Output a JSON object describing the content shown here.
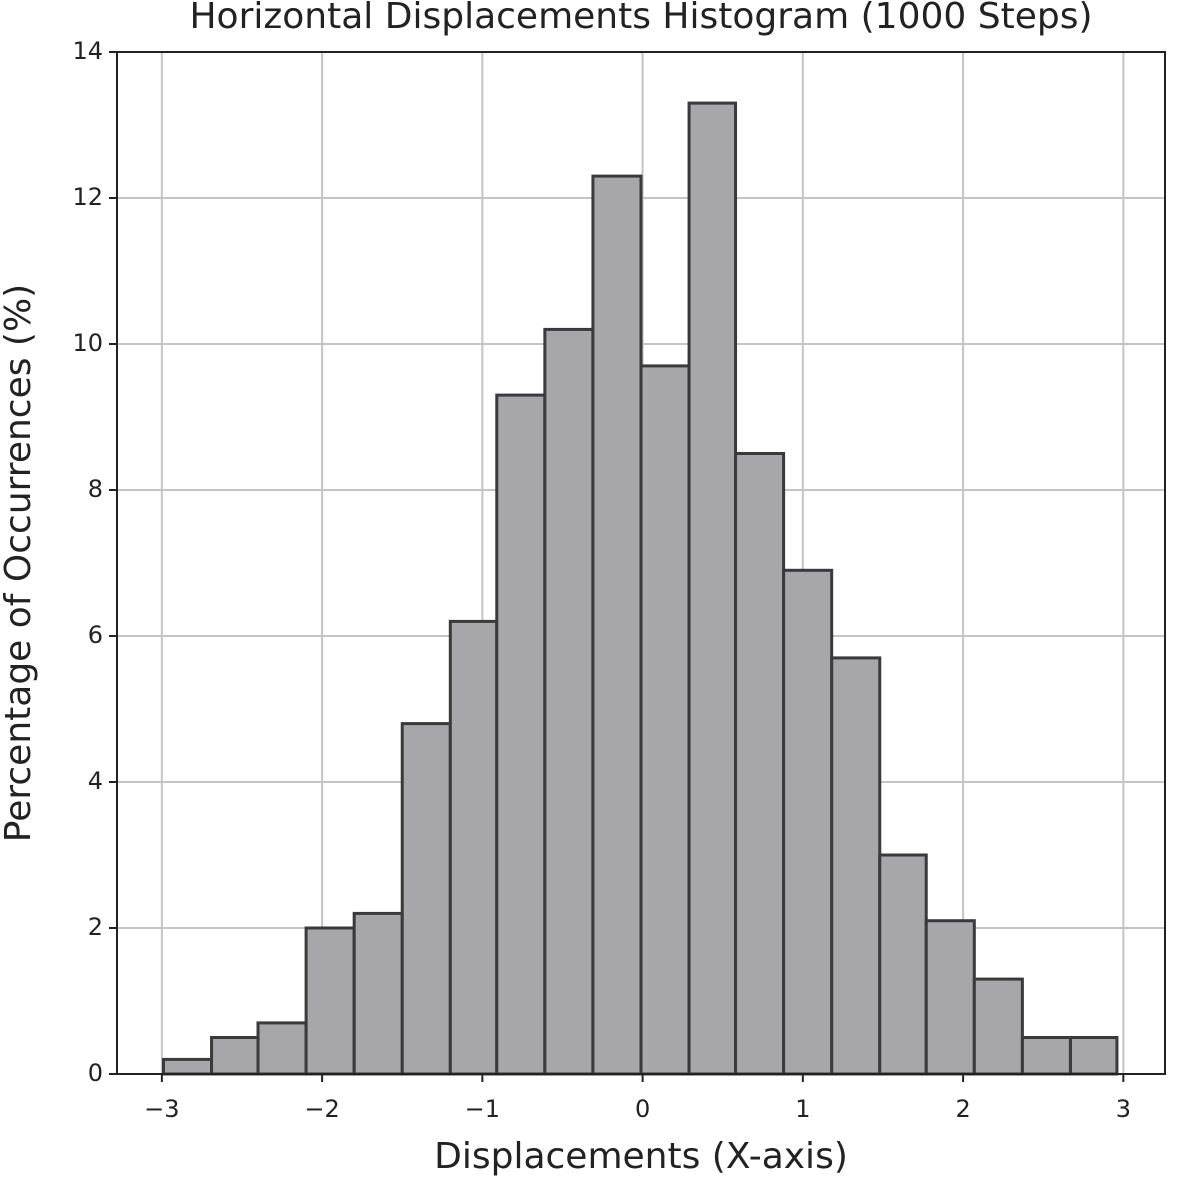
{
  "chart_data": {
    "type": "histogram",
    "title": "Horizontal Displacements Histogram (1000 Steps)",
    "xlabel": "Displacements (X-axis)",
    "ylabel": "Percentage of Occurrences (%)",
    "bins": [
      -2.99,
      -2.69,
      -2.4,
      -2.1,
      -1.8,
      -1.5,
      -1.2,
      -0.91,
      -0.61,
      -0.31,
      -0.01,
      0.29,
      0.58,
      0.88,
      1.18,
      1.48,
      1.77,
      2.07,
      2.37,
      2.67,
      2.96
    ],
    "values": [
      0.2,
      0.5,
      0.7,
      2.0,
      2.2,
      4.8,
      6.2,
      9.3,
      10.2,
      12.3,
      9.7,
      13.3,
      8.5,
      6.9,
      5.7,
      3.0,
      2.1,
      1.3,
      0.5,
      0.5
    ],
    "color": "#a6a6ab",
    "edgecolor": "#3a3a3c",
    "xlim": [
      -3.28,
      3.26
    ],
    "ylim": [
      0,
      14
    ],
    "xticks": [
      {
        "value": -3,
        "label": "−3"
      },
      {
        "value": -2,
        "label": "−2"
      },
      {
        "value": -1,
        "label": "−1"
      },
      0,
      1,
      2,
      3
    ],
    "yticks": [
      0,
      2,
      4,
      6,
      8,
      10,
      12,
      14
    ],
    "grid": true
  }
}
